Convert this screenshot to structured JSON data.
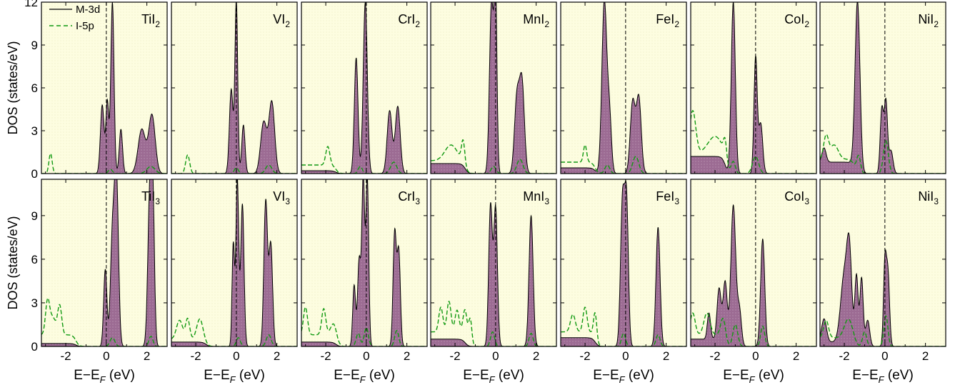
{
  "figure": {
    "ylabel": "DOS (states/eV)",
    "xlabel": "E−E_F (eV)",
    "xlabel_parts": [
      "E−E",
      "F",
      " (eV)"
    ]
  },
  "legend": {
    "items": [
      {
        "label": "M-3d",
        "style": "solid"
      },
      {
        "label": "I-5p",
        "style": "dashed"
      }
    ]
  },
  "colors": {
    "panel_background": "#fdfde0",
    "fill_d": "#9c6b93",
    "line_d": "#000000",
    "line_p": "#129a12",
    "fermi_line": "#000000"
  },
  "chart_data": {
    "type": "area",
    "layout": "grid 2 rows x 7 columns",
    "xlim": [
      -3.2,
      3.0
    ],
    "xticks": [
      -2,
      0,
      2
    ],
    "xtick_labels": [
      "-2",
      "0",
      "2"
    ],
    "rows": [
      {
        "ylim": [
          0,
          12
        ],
        "yticks": [
          0,
          3,
          6,
          9,
          12
        ],
        "ytick_labels": [
          "0",
          "3",
          "6",
          "9",
          "12"
        ]
      },
      {
        "ylim": [
          0,
          11.5
        ],
        "yticks": [
          0,
          3,
          6,
          9
        ],
        "ytick_labels": [
          "0",
          "3",
          "6",
          "9"
        ]
      }
    ],
    "fermi_level": 0,
    "panels": [
      {
        "row": 0,
        "col": 0,
        "title": "TiI",
        "subscript": "2",
        "d_peaks": [
          [
            -0.2,
            4.8,
            0.09
          ],
          [
            0.05,
            5.0,
            0.07
          ],
          [
            0.3,
            12.0,
            0.08
          ],
          [
            0.72,
            3.1,
            0.08
          ],
          [
            1.75,
            3.1,
            0.18
          ],
          [
            2.25,
            4.1,
            0.16
          ]
        ],
        "p_peaks": [
          [
            -2.75,
            1.4,
            0.08
          ],
          [
            0.2,
            0.3,
            0.1
          ],
          [
            2.2,
            0.5,
            0.2
          ]
        ],
        "d_base": 0.0,
        "p_base": 0.0
      },
      {
        "row": 0,
        "col": 1,
        "title": "VI",
        "subscript": "2",
        "d_peaks": [
          [
            -0.25,
            5.9,
            0.09
          ],
          [
            0.0,
            12.0,
            0.07
          ],
          [
            0.35,
            3.4,
            0.08
          ],
          [
            1.35,
            3.6,
            0.15
          ],
          [
            1.75,
            5.0,
            0.14
          ]
        ],
        "p_peaks": [
          [
            -2.4,
            1.3,
            0.1
          ],
          [
            0.0,
            0.4,
            0.1
          ],
          [
            1.6,
            0.6,
            0.15
          ]
        ],
        "d_base": 0.0,
        "p_base": 0.0
      },
      {
        "row": 0,
        "col": 2,
        "title": "CrI",
        "subscript": "2",
        "d_peaks": [
          [
            -0.5,
            8.1,
            0.09
          ],
          [
            -0.05,
            12.0,
            0.1
          ],
          [
            1.15,
            4.4,
            0.12
          ],
          [
            1.55,
            4.7,
            0.12
          ]
        ],
        "p_peaks": [
          [
            -1.9,
            1.3,
            0.1
          ],
          [
            -0.3,
            0.5,
            0.1
          ],
          [
            1.35,
            0.8,
            0.15
          ]
        ],
        "d_base": 0.2,
        "p_base": 0.6
      },
      {
        "row": 0,
        "col": 3,
        "title": "MnI",
        "subscript": "2",
        "d_peaks": [
          [
            -0.2,
            12.0,
            0.1
          ],
          [
            0.0,
            12.0,
            0.07
          ],
          [
            1.05,
            5.2,
            0.12
          ],
          [
            1.3,
            6.3,
            0.12
          ]
        ],
        "p_peaks": [
          [
            -2.2,
            1.1,
            0.3
          ],
          [
            -1.6,
            1.5,
            0.08
          ],
          [
            -0.1,
            0.5,
            0.12
          ],
          [
            1.2,
            1.0,
            0.15
          ]
        ],
        "d_base": 0.7,
        "p_base": 0.9
      },
      {
        "row": 0,
        "col": 4,
        "title": "FeI",
        "subscript": "2",
        "d_peaks": [
          [
            -1.05,
            12.0,
            0.12
          ],
          [
            -0.8,
            4.0,
            0.1
          ],
          [
            0.35,
            5.0,
            0.12
          ],
          [
            0.65,
            5.3,
            0.12
          ]
        ],
        "p_peaks": [
          [
            -2.0,
            1.2,
            0.08
          ],
          [
            -0.9,
            0.6,
            0.12
          ],
          [
            0.5,
            1.2,
            0.15
          ]
        ],
        "d_base": 0.4,
        "p_base": 0.8
      },
      {
        "row": 0,
        "col": 5,
        "title": "CoI",
        "subscript": "2",
        "d_peaks": [
          [
            -1.1,
            12.0,
            0.1
          ],
          [
            0.0,
            8.1,
            0.08
          ],
          [
            0.25,
            3.5,
            0.1
          ]
        ],
        "p_peaks": [
          [
            -3.1,
            3.0,
            0.15
          ],
          [
            -2.0,
            1.2,
            0.35
          ],
          [
            -1.5,
            1.3,
            0.08
          ],
          [
            -1.1,
            0.8,
            0.1
          ],
          [
            0.0,
            1.2,
            0.15
          ]
        ],
        "d_base": 1.2,
        "p_base": 1.4
      },
      {
        "row": 0,
        "col": 6,
        "title": "NiI",
        "subscript": "2",
        "d_peaks": [
          [
            -3.0,
            1.0,
            0.1
          ],
          [
            -1.35,
            12.0,
            0.12
          ],
          [
            -0.15,
            4.5,
            0.08
          ],
          [
            0.05,
            5.0,
            0.08
          ],
          [
            0.3,
            1.6,
            0.1
          ]
        ],
        "p_peaks": [
          [
            -2.9,
            1.6,
            0.12
          ],
          [
            -2.5,
            1.0,
            0.2
          ],
          [
            -1.3,
            1.2,
            0.1
          ],
          [
            0.05,
            2.3,
            0.12
          ]
        ],
        "d_base": 0.8,
        "p_base": 1.0
      },
      {
        "row": 1,
        "col": 0,
        "title": "TiI",
        "subscript": "3",
        "d_peaks": [
          [
            -0.05,
            5.3,
            0.08
          ],
          [
            0.3,
            7.3,
            0.1
          ],
          [
            0.5,
            11.5,
            0.1
          ],
          [
            2.15,
            10.6,
            0.1
          ],
          [
            2.3,
            8.5,
            0.08
          ]
        ],
        "p_peaks": [
          [
            -2.9,
            2.2,
            0.1
          ],
          [
            -2.3,
            2.0,
            0.1
          ],
          [
            -2.65,
            1.2,
            0.15
          ],
          [
            0.3,
            0.6,
            0.12
          ],
          [
            2.2,
            0.7,
            0.1
          ]
        ],
        "d_base": 0.2,
        "p_base": 0.8
      },
      {
        "row": 1,
        "col": 1,
        "title": "VI",
        "subscript": "3",
        "d_peaks": [
          [
            -0.15,
            7.0,
            0.06
          ],
          [
            0.05,
            11.5,
            0.07
          ],
          [
            0.3,
            9.8,
            0.08
          ],
          [
            1.45,
            10.0,
            0.09
          ],
          [
            1.7,
            7.0,
            0.09
          ]
        ],
        "p_peaks": [
          [
            -2.8,
            1.3,
            0.15
          ],
          [
            -2.4,
            1.4,
            0.1
          ],
          [
            -1.8,
            1.4,
            0.15
          ],
          [
            0.1,
            0.6,
            0.1
          ],
          [
            1.6,
            0.8,
            0.12
          ]
        ],
        "d_base": 0.3,
        "p_base": 0.5
      },
      {
        "row": 1,
        "col": 2,
        "title": "CrI",
        "subscript": "3",
        "d_peaks": [
          [
            -0.6,
            4.2,
            0.07
          ],
          [
            -0.35,
            6.0,
            0.08
          ],
          [
            -0.15,
            11.5,
            0.07
          ],
          [
            0.05,
            11.5,
            0.07
          ],
          [
            1.4,
            7.8,
            0.08
          ],
          [
            1.6,
            6.5,
            0.08
          ]
        ],
        "p_peaks": [
          [
            -3.0,
            1.9,
            0.1
          ],
          [
            -2.1,
            1.8,
            0.1
          ],
          [
            -1.6,
            0.9,
            0.15
          ],
          [
            -0.4,
            0.9,
            0.1
          ],
          [
            0.0,
            1.3,
            0.1
          ],
          [
            1.5,
            1.1,
            0.1
          ]
        ],
        "d_base": 0.3,
        "p_base": 0.8
      },
      {
        "row": 1,
        "col": 3,
        "title": "MnI",
        "subscript": "3",
        "d_peaks": [
          [
            -0.25,
            9.7,
            0.09
          ],
          [
            0.0,
            9.5,
            0.09
          ],
          [
            1.75,
            9.0,
            0.1
          ]
        ],
        "p_peaks": [
          [
            -2.7,
            1.7,
            0.1
          ],
          [
            -2.3,
            2.1,
            0.1
          ],
          [
            -1.9,
            1.5,
            0.1
          ],
          [
            -1.5,
            2.0,
            0.1
          ],
          [
            -1.25,
            1.8,
            0.08
          ],
          [
            -0.15,
            1.0,
            0.1
          ],
          [
            1.75,
            0.9,
            0.1
          ]
        ],
        "d_base": 0.5,
        "p_base": 1.0
      },
      {
        "row": 1,
        "col": 4,
        "title": "FeI",
        "subscript": "3",
        "d_peaks": [
          [
            -0.15,
            10.0,
            0.1
          ],
          [
            0.05,
            9.5,
            0.09
          ],
          [
            1.6,
            8.2,
            0.1
          ]
        ],
        "p_peaks": [
          [
            -2.6,
            1.2,
            0.12
          ],
          [
            -2.0,
            1.7,
            0.1
          ],
          [
            -1.5,
            1.8,
            0.08
          ],
          [
            -0.1,
            0.9,
            0.1
          ],
          [
            1.6,
            0.8,
            0.1
          ]
        ],
        "d_base": 0.6,
        "p_base": 1.0
      },
      {
        "row": 1,
        "col": 5,
        "title": "CoI",
        "subscript": "3",
        "d_peaks": [
          [
            -2.3,
            1.8,
            0.08
          ],
          [
            -1.8,
            3.5,
            0.1
          ],
          [
            -1.5,
            4.2,
            0.1
          ],
          [
            -1.1,
            9.7,
            0.12
          ],
          [
            -0.8,
            2.5,
            0.1
          ],
          [
            0.35,
            7.4,
            0.1
          ]
        ],
        "p_peaks": [
          [
            -3.1,
            1.5,
            0.12
          ],
          [
            -2.4,
            1.5,
            0.15
          ],
          [
            -1.6,
            1.3,
            0.12
          ],
          [
            -1.0,
            1.5,
            0.12
          ],
          [
            0.35,
            1.4,
            0.1
          ]
        ],
        "d_base": 0.5,
        "p_base": 0.8
      },
      {
        "row": 1,
        "col": 6,
        "title": "NiI",
        "subscript": "3",
        "d_peaks": [
          [
            -3.0,
            1.6,
            0.12
          ],
          [
            -2.0,
            4.6,
            0.18
          ],
          [
            -1.75,
            5.5,
            0.12
          ],
          [
            -1.4,
            4.8,
            0.08
          ],
          [
            -1.15,
            4.7,
            0.08
          ],
          [
            -0.85,
            1.8,
            0.1
          ],
          [
            0.0,
            5.5,
            0.07
          ],
          [
            0.15,
            5.0,
            0.08
          ]
        ],
        "p_peaks": [
          [
            -2.9,
            1.2,
            0.12
          ],
          [
            -1.8,
            1.3,
            0.2
          ],
          [
            -1.0,
            1.0,
            0.1
          ],
          [
            0.05,
            2.1,
            0.1
          ]
        ],
        "d_base": 0.3,
        "p_base": 0.6
      }
    ]
  }
}
